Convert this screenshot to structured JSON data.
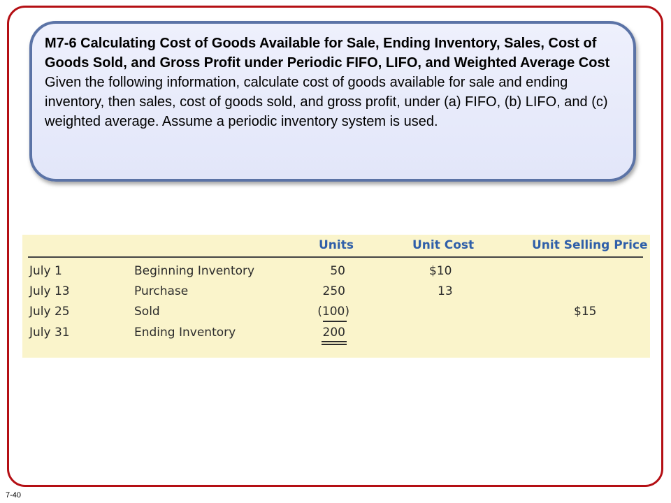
{
  "problem": {
    "title": "M7-6 Calculating Cost of Goods Available for Sale, Ending Inventory, Sales, Cost of Goods Sold, and Gross Profit under Periodic FIFO, LIFO, and Weighted Average Cost",
    "text": "Given the following information, calculate cost of goods available for sale and ending inventory, then sales, cost of goods sold, and gross profit, under (a) FIFO, (b) LIFO, and (c) weighted average. Assume a periodic inventory system is used."
  },
  "table": {
    "headers": {
      "units": "Units",
      "unit_cost": "Unit Cost",
      "unit_selling_price": "Unit Selling Price"
    },
    "rows": [
      {
        "date": "July 1",
        "description": "Beginning Inventory",
        "units": "50",
        "unit_cost": "$10",
        "unit_selling_price": ""
      },
      {
        "date": "July 13",
        "description": "Purchase",
        "units": "250",
        "unit_cost": "13",
        "unit_selling_price": ""
      },
      {
        "date": "July 25",
        "description": "Sold",
        "units": "(100)",
        "unit_cost": "",
        "unit_selling_price": "$15"
      },
      {
        "date": "July 31",
        "description": "Ending Inventory",
        "units": "200",
        "unit_cost": "",
        "unit_selling_price": ""
      }
    ]
  },
  "slide_number": "7-40",
  "colors": {
    "frame_border": "#b40f14",
    "box_border": "#5b73a6",
    "box_fill": "#e8ebfb",
    "table_background": "#faf4cb",
    "header_text": "#2f5fa9"
  }
}
